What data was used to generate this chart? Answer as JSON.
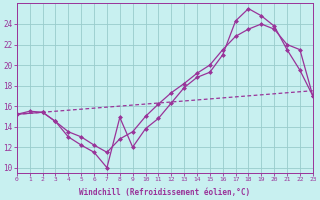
{
  "background_color": "#c8f0f0",
  "line_color": "#993399",
  "grid_color": "#99cccc",
  "xlabel": "Windchill (Refroidissement éolien,°C)",
  "xlim": [
    0,
    23
  ],
  "ylim": [
    9.5,
    26.0
  ],
  "yticks": [
    10,
    12,
    14,
    16,
    18,
    20,
    22,
    24
  ],
  "xticks": [
    0,
    1,
    2,
    3,
    4,
    5,
    6,
    7,
    8,
    9,
    10,
    11,
    12,
    13,
    14,
    15,
    16,
    17,
    18,
    19,
    20,
    21,
    22,
    23
  ],
  "line1_x": [
    0,
    1,
    2,
    3,
    4,
    5,
    6,
    7,
    8,
    9,
    10,
    11,
    12,
    13,
    14,
    15,
    16,
    17,
    18,
    19,
    20,
    21,
    22,
    23
  ],
  "line1_y": [
    15.2,
    15.5,
    15.4,
    14.5,
    13.0,
    12.2,
    11.5,
    10.0,
    14.9,
    12.0,
    13.8,
    14.8,
    16.3,
    17.8,
    18.8,
    19.3,
    21.0,
    24.3,
    25.5,
    24.8,
    23.8,
    21.5,
    19.5,
    17.0
  ],
  "line2_x": [
    0,
    2,
    3,
    4,
    5,
    6,
    7,
    8,
    9,
    10,
    11,
    12,
    13,
    14,
    15,
    16,
    17,
    18,
    19,
    20,
    21,
    22,
    23
  ],
  "line2_y": [
    15.2,
    15.4,
    14.5,
    13.5,
    13.0,
    12.2,
    11.5,
    12.8,
    13.5,
    15.0,
    16.2,
    17.3,
    18.2,
    19.2,
    20.0,
    21.5,
    22.8,
    23.5,
    24.0,
    23.5,
    22.0,
    21.5,
    17.0
  ],
  "line3_x": [
    0,
    23
  ],
  "line3_y": [
    15.2,
    17.5
  ],
  "line3_has_markers": true,
  "line3_marker_x": [
    0,
    2,
    4,
    6,
    8,
    10,
    12,
    14,
    16,
    18,
    20,
    22,
    23
  ],
  "line3_marker_y": [
    15.2,
    15.4,
    15.6,
    15.8,
    16.0,
    16.2,
    16.4,
    16.6,
    16.8,
    17.0,
    17.2,
    17.4,
    17.5
  ]
}
